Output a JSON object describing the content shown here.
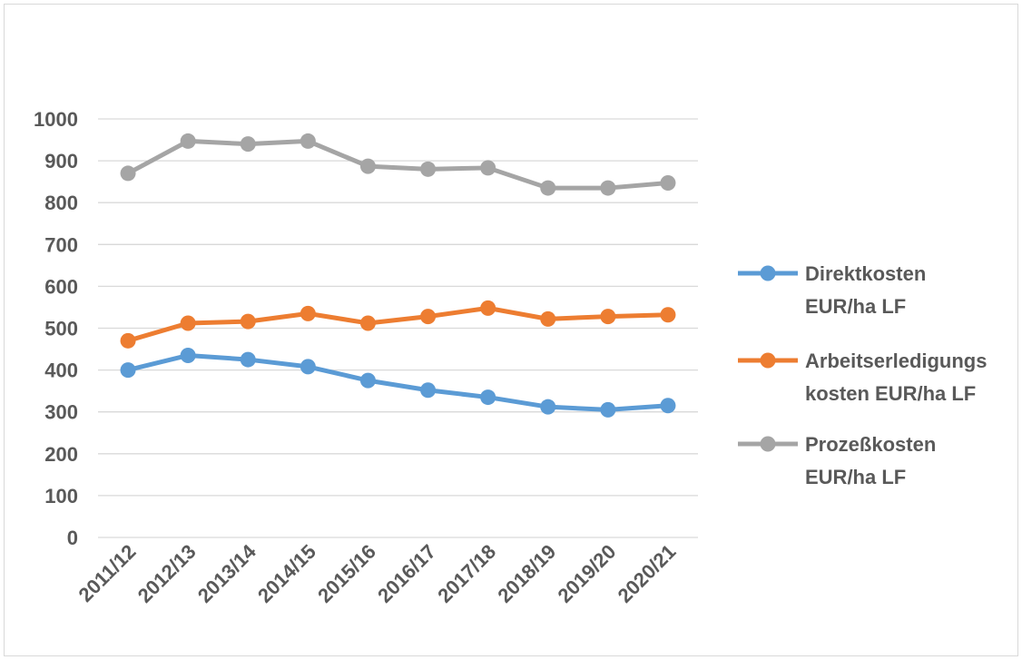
{
  "chart_data": {
    "type": "line",
    "title": "",
    "xlabel": "",
    "ylabel": "",
    "categories": [
      "2011/12",
      "2012/13",
      "2013/14",
      "2014/15",
      "2015/16",
      "2016/17",
      "2017/18",
      "2018/19",
      "2019/20",
      "2020/21"
    ],
    "ylim": [
      0,
      1000
    ],
    "yticks": [
      "0",
      "100",
      "200",
      "300",
      "400",
      "500",
      "600",
      "700",
      "800",
      "900",
      "1000"
    ],
    "grid": true,
    "legend_position": "right",
    "series": [
      {
        "name": "Direktkosten EUR/ha LF",
        "legend_lines": [
          "Direktkosten",
          "EUR/ha LF"
        ],
        "color": "#5b9bd5",
        "values": [
          400,
          435,
          425,
          408,
          375,
          352,
          335,
          312,
          305,
          315
        ]
      },
      {
        "name": "Arbeitserledigungskosten EUR/ha LF",
        "legend_lines": [
          "Arbeitserledigungs",
          "kosten EUR/ha LF"
        ],
        "color": "#ed7d31",
        "values": [
          470,
          512,
          516,
          535,
          512,
          528,
          548,
          522,
          528,
          532
        ]
      },
      {
        "name": "Prozeßkosten EUR/ha LF",
        "legend_lines": [
          "Prozeßkosten",
          "EUR/ha LF"
        ],
        "color": "#a5a5a5",
        "values": [
          870,
          947,
          940,
          947,
          887,
          880,
          883,
          835,
          835,
          847
        ]
      }
    ]
  }
}
